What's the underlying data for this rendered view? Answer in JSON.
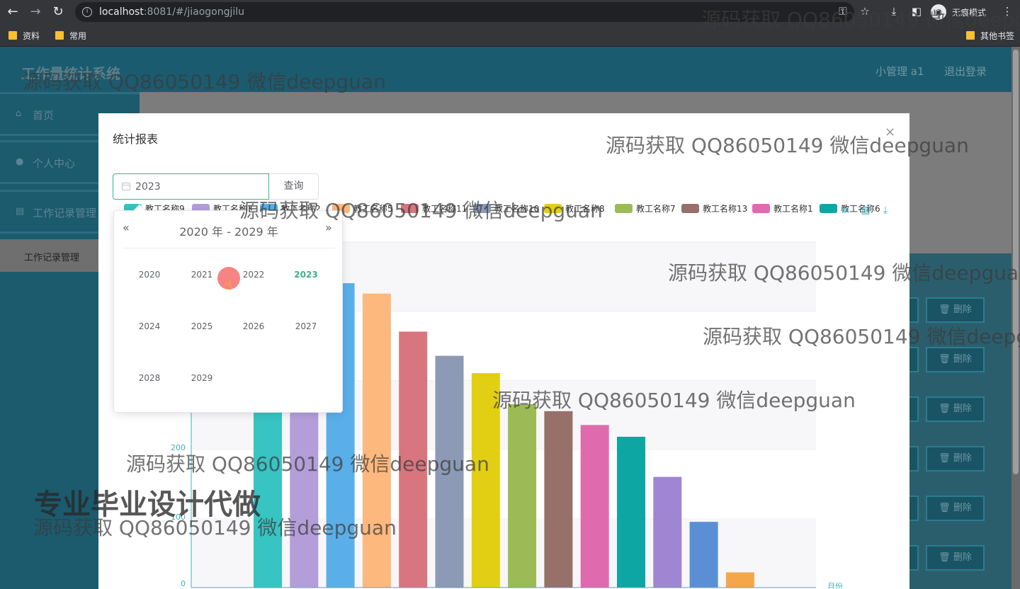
{
  "browser": {
    "url_host": "localhost",
    "url_rest": ":8081/#/jiaogongjilu",
    "profile_label": "无痕模式",
    "bookmarks": [
      "资料",
      "常用"
    ],
    "other_bookmarks": "其他书签"
  },
  "app": {
    "title": "工作量统计系统",
    "user": "小管理 a1",
    "logout": "退出登录",
    "sidebar": {
      "items": [
        {
          "label": "首页",
          "icon": "home-icon"
        },
        {
          "label": "个人中心",
          "icon": "user-icon"
        },
        {
          "label": "工作记录管理",
          "icon": "clipboard-icon"
        }
      ],
      "sub_item": "工作记录管理"
    },
    "delete_label": "删除"
  },
  "dialog": {
    "title": "统计报表",
    "close": "×",
    "year_value": "2023",
    "query_label": "查询"
  },
  "legend": [
    {
      "name": "教工名称9",
      "color": "#37c4c3"
    },
    {
      "name": "教工名称3",
      "color": "#b49ed9"
    },
    {
      "name": "教工名称2",
      "color": "#5aafe8"
    },
    {
      "name": "教工名称5",
      "color": "#fdb87d"
    },
    {
      "name": "教工名称11",
      "color": "#d8757f"
    },
    {
      "name": "教工名称10",
      "color": "#8c9ab5"
    },
    {
      "name": "教工名称8",
      "color": "#e2cf13"
    },
    {
      "name": "教工名称7",
      "color": "#9cbb56"
    },
    {
      "name": "教工名称13",
      "color": "#967069"
    },
    {
      "name": "教工名称1",
      "color": "#df6bae"
    },
    {
      "name": "教工名称6",
      "color": "#0ea6a3"
    }
  ],
  "chart_data": {
    "type": "bar",
    "xlabel": "月份",
    "y_ticks": [
      "0",
      "100",
      "200"
    ],
    "ylim": [
      0,
      440
    ],
    "values": [
      330,
      365,
      440,
      425,
      370,
      335,
      310,
      265,
      255,
      235,
      218,
      160,
      95,
      22
    ],
    "colors": [
      "#37c4c3",
      "#b49ed9",
      "#5aafe8",
      "#fdb87d",
      "#d8757f",
      "#8c9ab5",
      "#e2cf13",
      "#9cbb56",
      "#967069",
      "#df6bae",
      "#0ea6a3",
      "#9f85d2",
      "#5a8fd6",
      "#f4a74a"
    ]
  },
  "year_picker": {
    "header": "2020 年 - 2029 年",
    "prev": "«",
    "next": "»",
    "years": [
      "2020",
      "2021",
      "2022",
      "2023",
      "2024",
      "2025",
      "2026",
      "2027",
      "2028",
      "2029"
    ],
    "current": "2023"
  },
  "watermarks": {
    "text": "源码获取 QQ86050149 微信deepguan",
    "big": "专业毕业设计代做"
  }
}
